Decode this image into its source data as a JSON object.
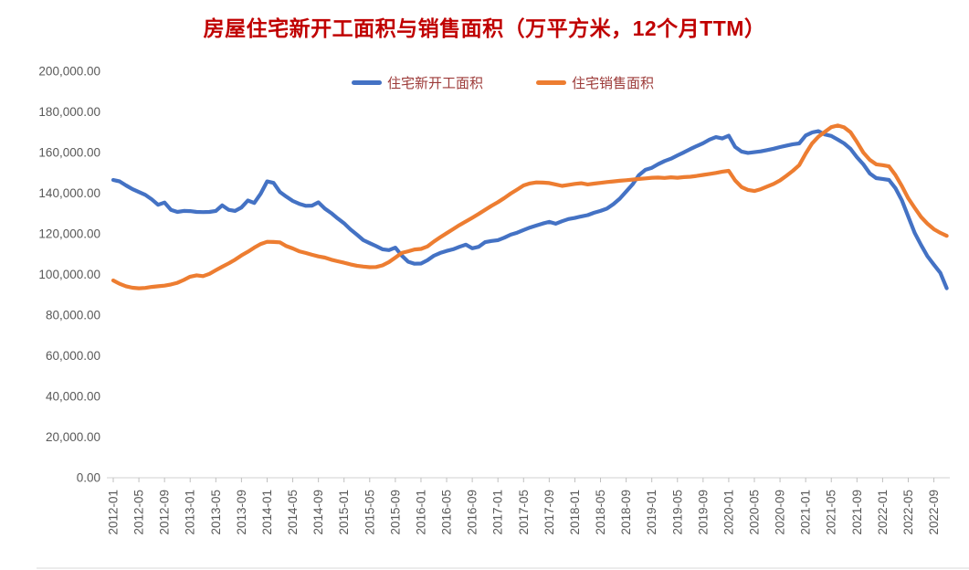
{
  "title": "房屋住宅新开工面积与销售面积（万平方米，12个月TTM）",
  "colors": {
    "title_text": "#C00000",
    "legend_text": "#9c3a38",
    "axis_text": "#595959",
    "axis_line": "#D9D9D9",
    "tick_mark": "#BFBFBF",
    "series_new_starts": "#4472C4",
    "series_sales": "#ED7D31",
    "background": "#FFFFFF"
  },
  "chart_data": {
    "type": "line",
    "title": "房屋住宅新开工面积与销售面积（万平方米，12个月TTM）",
    "xlabel": "",
    "ylabel": "",
    "ylim": [
      0,
      200000
    ],
    "y_tick_step": 20000,
    "grid": false,
    "legend_position": "top-center",
    "x_monthly_start": "2012-01",
    "x_monthly_end": "2022-11",
    "x_tick_labels": [
      "2012-01",
      "2012-05",
      "2012-09",
      "2013-01",
      "2013-05",
      "2013-09",
      "2014-01",
      "2014-05",
      "2014-09",
      "2015-01",
      "2015-05",
      "2015-09",
      "2016-01",
      "2016-05",
      "2016-09",
      "2017-01",
      "2017-05",
      "2017-09",
      "2018-01",
      "2018-05",
      "2018-09",
      "2019-01",
      "2019-05",
      "2019-09",
      "2020-01",
      "2020-05",
      "2020-09",
      "2021-01",
      "2021-05",
      "2021-09",
      "2022-01",
      "2022-05",
      "2022-09"
    ],
    "y_axis_labels": [
      "200,000.00",
      "180,000.00",
      "160,000.00",
      "140,000.00",
      "120,000.00",
      "100,000.00",
      "80,000.00",
      "60,000.00",
      "40,000.00",
      "20,000.00",
      "0.00"
    ],
    "series": [
      {
        "name": "住宅新开工面积",
        "color": "#4472C4",
        "values": [
          146500,
          145800,
          143800,
          142000,
          140600,
          139200,
          137000,
          134300,
          135400,
          131800,
          130800,
          131300,
          131200,
          130800,
          130700,
          130800,
          131300,
          134000,
          131800,
          131300,
          133000,
          136400,
          135200,
          139800,
          145800,
          145100,
          140600,
          138300,
          136200,
          134800,
          133800,
          133900,
          135500,
          132400,
          130200,
          127600,
          125200,
          122200,
          119600,
          116900,
          115400,
          114000,
          112400,
          112000,
          113200,
          109300,
          106300,
          105300,
          105400,
          107000,
          109200,
          110600,
          111600,
          112400,
          113600,
          114700,
          112900,
          113600,
          115900,
          116500,
          116900,
          118100,
          119600,
          120600,
          121900,
          123100,
          124100,
          125100,
          125900,
          125000,
          126200,
          127300,
          127800,
          128600,
          129200,
          130400,
          131300,
          132400,
          134600,
          137300,
          140800,
          144300,
          148900,
          151500,
          152500,
          154300,
          155800,
          157000,
          158600,
          160100,
          161700,
          163200,
          164600,
          166400,
          167600,
          166900,
          168300,
          162800,
          160500,
          159800,
          160200,
          160600,
          161200,
          161900,
          162700,
          163400,
          164100,
          164500,
          168400,
          169900,
          170500,
          168900,
          168200,
          166400,
          164500,
          161800,
          157700,
          154200,
          149700,
          147400,
          147000,
          146500,
          142500,
          136500,
          128500,
          120500,
          114500,
          109000,
          104800,
          100800,
          93200
        ]
      },
      {
        "name": "住宅销售面积",
        "color": "#ED7D31",
        "values": [
          97100,
          95400,
          94200,
          93500,
          93200,
          93400,
          93900,
          94200,
          94500,
          95100,
          95900,
          97300,
          98900,
          99600,
          99200,
          100300,
          102100,
          103800,
          105500,
          107300,
          109400,
          111200,
          113200,
          115000,
          116100,
          116000,
          115800,
          114000,
          112800,
          111400,
          110600,
          109700,
          108900,
          108300,
          107300,
          106500,
          105800,
          105000,
          104300,
          103900,
          103600,
          103700,
          104500,
          106100,
          108300,
          110600,
          111400,
          112300,
          112600,
          113800,
          116200,
          118300,
          120300,
          122300,
          124300,
          126100,
          127900,
          129800,
          131800,
          133800,
          135600,
          137600,
          139800,
          141800,
          143800,
          144800,
          145300,
          145200,
          145000,
          144300,
          143600,
          144100,
          144600,
          144900,
          144300,
          144700,
          145100,
          145500,
          145800,
          146100,
          146400,
          146700,
          147000,
          147300,
          147600,
          147700,
          147500,
          147800,
          147600,
          147900,
          148100,
          148500,
          149000,
          149500,
          150000,
          150600,
          151000,
          146300,
          143000,
          141600,
          141100,
          142000,
          143300,
          144600,
          146300,
          148600,
          151000,
          153800,
          159500,
          164500,
          167800,
          170200,
          172500,
          173300,
          172400,
          170000,
          165200,
          160000,
          156400,
          154200,
          153800,
          153200,
          149000,
          143500,
          137500,
          132800,
          128300,
          125000,
          122300,
          120500,
          119000
        ]
      }
    ]
  }
}
